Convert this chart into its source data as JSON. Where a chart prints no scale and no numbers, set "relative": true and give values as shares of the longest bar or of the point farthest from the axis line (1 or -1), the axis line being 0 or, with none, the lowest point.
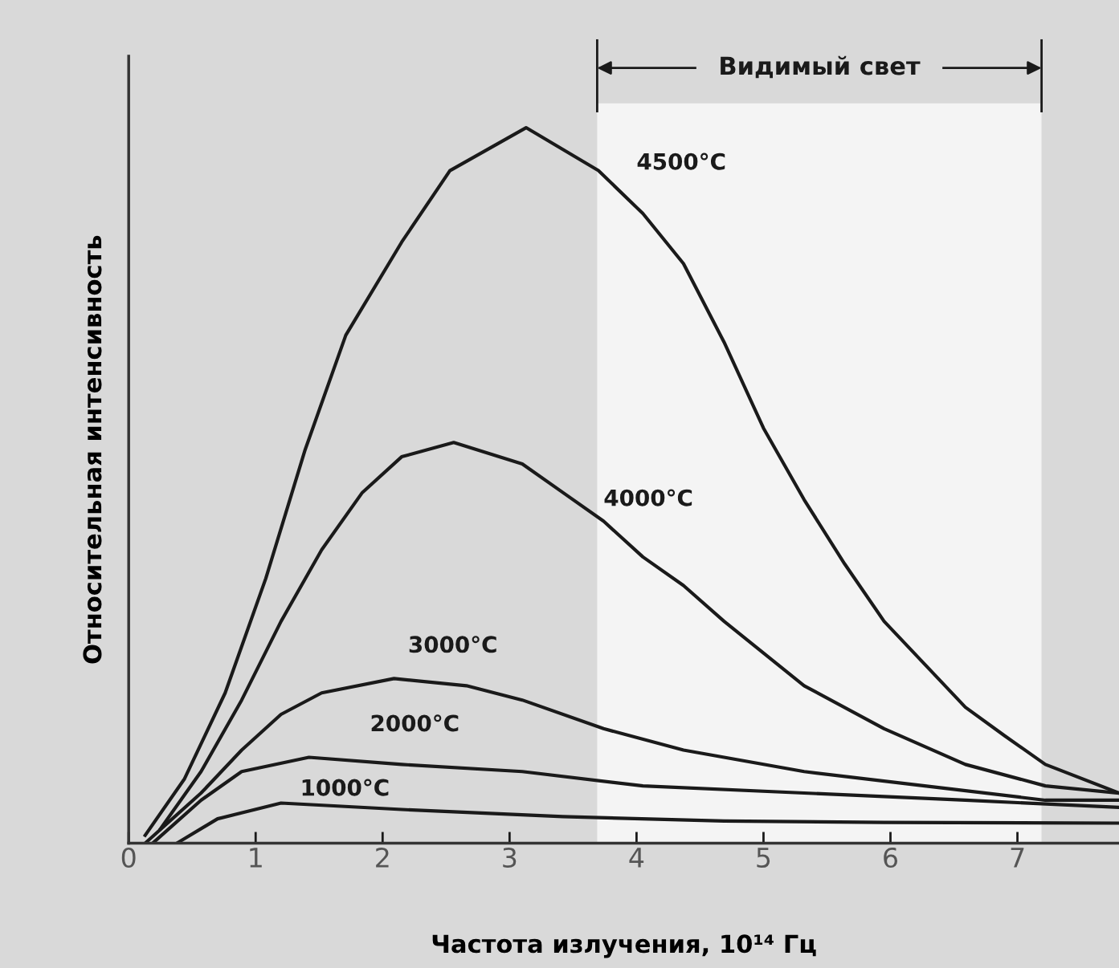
{
  "chart_data": {
    "type": "line",
    "relative": true,
    "xlabel": "Частота излучения, 10¹⁴ Гц",
    "ylabel": "Относительная интенсивность",
    "xlim": [
      0,
      7.8
    ],
    "xticks": [
      0,
      1,
      2,
      3,
      4,
      5,
      6,
      7
    ],
    "grid": false,
    "legend": false,
    "marker": "none",
    "line_style": "solid",
    "bands": [
      {
        "axis": "x",
        "from": 3.69,
        "to": 7.19,
        "label": "Видимый свет",
        "color": "#f4f4f4"
      }
    ],
    "series": [
      {
        "name": "4500°C",
        "color": "#1a1a1a",
        "x": [
          0.13,
          0.44,
          0.76,
          1.08,
          1.39,
          1.71,
          2.15,
          2.53,
          3.13,
          3.7,
          4.05,
          4.37,
          4.69,
          5.0,
          5.32,
          5.64,
          5.95,
          6.27,
          6.59,
          6.9,
          7.22,
          7.8
        ],
        "values": [
          0.011,
          0.09,
          0.21,
          0.37,
          0.55,
          0.71,
          0.84,
          0.94,
          1.0,
          0.94,
          0.88,
          0.81,
          0.7,
          0.58,
          0.48,
          0.39,
          0.31,
          0.25,
          0.19,
          0.15,
          0.11,
          0.07
        ]
      },
      {
        "name": "4000°C",
        "color": "#1a1a1a",
        "x": [
          0.25,
          0.57,
          0.89,
          1.2,
          1.52,
          1.84,
          2.15,
          2.56,
          3.1,
          3.42,
          3.74,
          4.05,
          4.37,
          4.69,
          5.32,
          5.95,
          6.59,
          7.22,
          7.8
        ],
        "values": [
          0.02,
          0.1,
          0.2,
          0.31,
          0.41,
          0.49,
          0.54,
          0.56,
          0.53,
          0.49,
          0.45,
          0.4,
          0.36,
          0.31,
          0.22,
          0.16,
          0.11,
          0.08,
          0.07
        ]
      },
      {
        "name": "3000°C",
        "color": "#1a1a1a",
        "x": [
          0.13,
          0.57,
          0.89,
          1.2,
          1.52,
          2.09,
          2.66,
          3.1,
          3.74,
          4.37,
          5.32,
          6.27,
          7.22,
          7.8
        ],
        "values": [
          0.0,
          0.07,
          0.13,
          0.18,
          0.21,
          0.23,
          0.22,
          0.2,
          0.16,
          0.13,
          0.1,
          0.08,
          0.06,
          0.06
        ]
      },
      {
        "name": "2000°C",
        "color": "#1a1a1a",
        "x": [
          0.19,
          0.57,
          0.89,
          1.42,
          2.15,
          3.1,
          4.05,
          5.32,
          6.59,
          7.8
        ],
        "values": [
          0.0,
          0.06,
          0.1,
          0.12,
          0.11,
          0.1,
          0.08,
          0.07,
          0.06,
          0.05
        ]
      },
      {
        "name": "1000°C",
        "color": "#1a1a1a",
        "x": [
          0.38,
          0.7,
          1.2,
          2.15,
          3.42,
          4.69,
          5.95,
          7.8
        ],
        "values": [
          0.0,
          0.034,
          0.056,
          0.047,
          0.037,
          0.031,
          0.029,
          0.028
        ]
      }
    ]
  }
}
